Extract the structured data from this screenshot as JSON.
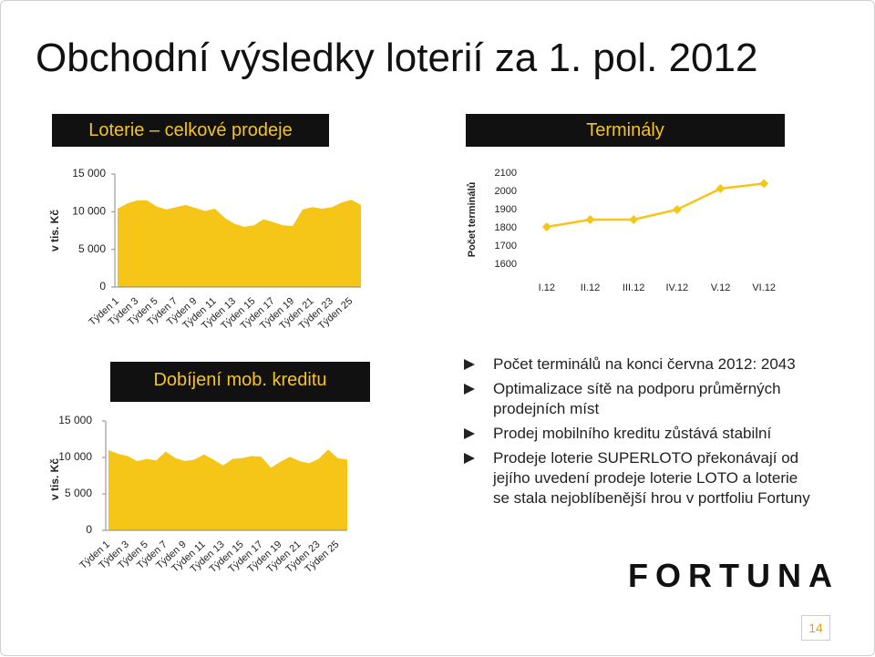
{
  "title": "Obchodní výsledky loterií za 1. pol. 2012",
  "headers": [
    "Loterie – celkové prodeje",
    "Terminály",
    "Dobíjení mob. kreditu"
  ],
  "bullets": [
    "Počet terminálů na konci června 2012: 2043",
    "Optimalizace sítě na podporu průměrných prodejních míst",
    "Prodej mobilního kreditu zůstává stabilní",
    "Prodeje loterie SUPERLOTO překonávají od jejího uvedení prodeje loterie LOTO a loterie se stala nejoblíbenější hrou v portfoliu Fortuny"
  ],
  "logo": "FORTUNA",
  "page_number": "14",
  "chart_data": [
    {
      "type": "area",
      "y_label": "v tis. Kč",
      "color": "#f5c518",
      "categories": [
        "Týden 1",
        null,
        "Týden 3",
        null,
        "Týden 5",
        null,
        "Týden 7",
        null,
        "Týden 9",
        null,
        "Týden 11",
        null,
        "Týden 13",
        null,
        "Týden 15",
        null,
        "Týden 17",
        null,
        "Týden 19",
        null,
        "Týden 21",
        null,
        "Týden 23",
        null,
        "Týden 25",
        null
      ],
      "values": [
        10400,
        11100,
        11500,
        11500,
        10700,
        10300,
        10600,
        10900,
        10500,
        10100,
        10400,
        9200,
        8400,
        8000,
        8200,
        9000,
        8600,
        8200,
        8100,
        10300,
        10600,
        10400,
        10600,
        11200,
        11600,
        10900
      ],
      "ylim": [
        0,
        15000
      ],
      "yticks": [
        0,
        {
          "value": 5000,
          "label": "5 000"
        },
        {
          "value": 10000,
          "label": "10 000"
        },
        {
          "value": 15000,
          "label": "15 000"
        }
      ]
    },
    {
      "type": "line",
      "y_label": "Počet terminálů",
      "color": "#f5c518",
      "categories": [
        "I.12",
        "II.12",
        "III.12",
        "IV.12",
        "V.12",
        "VI.12"
      ],
      "values": [
        1805,
        1845,
        1845,
        1900,
        2015,
        2043
      ],
      "ylim": [
        1600,
        2100
      ],
      "yticks": [
        1600,
        1700,
        1800,
        1900,
        2000,
        2100
      ]
    },
    {
      "type": "area",
      "y_label": "v tis. Kč",
      "color": "#f5c518",
      "categories": [
        "Týden 1",
        null,
        "Týden 3",
        null,
        "Týden 5",
        null,
        "Týden 7",
        null,
        "Týden 9",
        null,
        "Týden 11",
        null,
        "Týden 13",
        null,
        "Týden 15",
        null,
        "Týden 17",
        null,
        "Týden 19",
        null,
        "Týden 21",
        null,
        "Týden 23",
        null,
        "Týden 25",
        null
      ],
      "values": [
        11000,
        10500,
        10200,
        9500,
        9800,
        9600,
        10800,
        9900,
        9500,
        9700,
        10400,
        9700,
        8900,
        9800,
        9900,
        10200,
        10100,
        8600,
        9400,
        10100,
        9500,
        9200,
        9800,
        11100,
        9900,
        9700
      ],
      "ylim": [
        0,
        15000
      ],
      "yticks": [
        0,
        {
          "value": 5000,
          "label": "5 000"
        },
        {
          "value": 10000,
          "label": "10 000"
        },
        {
          "value": 15000,
          "label": "15 000"
        }
      ]
    }
  ]
}
